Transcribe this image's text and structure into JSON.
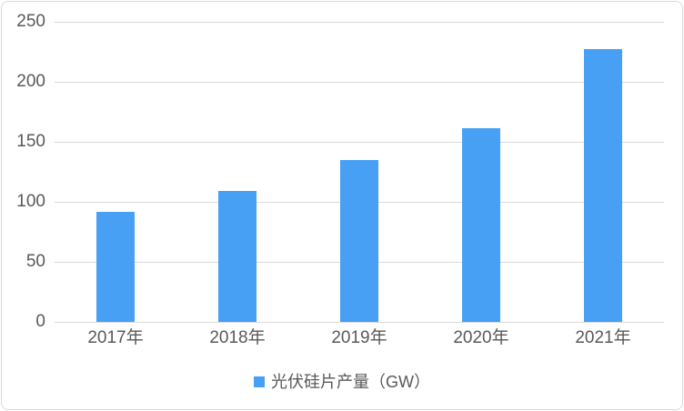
{
  "chart_data": {
    "type": "bar",
    "title": "",
    "categories": [
      "2017年",
      "2018年",
      "2019年",
      "2020年",
      "2021年"
    ],
    "values": [
      92,
      109,
      135,
      161,
      227
    ],
    "series_name": "光伏硅片产量（GW）",
    "xlabel": "",
    "ylabel": "",
    "ylim": [
      0,
      250
    ],
    "yticks": [
      0,
      50,
      100,
      150,
      200,
      250
    ],
    "grid": "horizontal",
    "legend_position": "bottom-center",
    "colors": {
      "bar": "#47a0f3",
      "text": "#595959",
      "gridline": "#d9d9d9",
      "border": "#d9d9d9",
      "background": "#ffffff"
    }
  }
}
